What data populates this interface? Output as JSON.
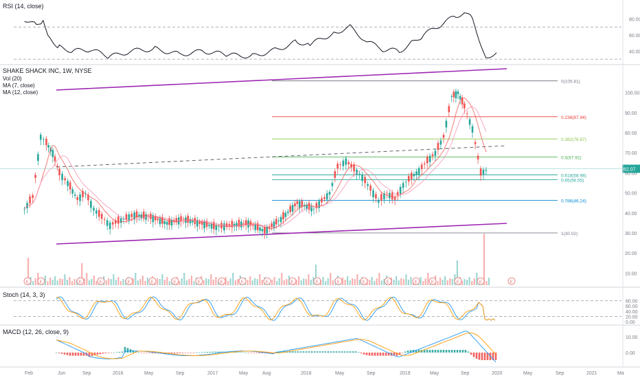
{
  "chart_data": {
    "type": "candlestick",
    "title": "SHAKE SHACK INC, 1W, NYSE",
    "panes": {
      "rsi": {
        "label": "RSI (14, close)",
        "levels": [
          70,
          30
        ],
        "ticks": [
          40,
          60,
          80
        ],
        "series": [
          [
            "2015-03-01",
            80
          ],
          [
            "2015-04-15",
            72
          ],
          [
            "2015-05-10",
            78
          ],
          [
            "2015-06-05",
            55
          ],
          [
            "2015-07-10",
            45
          ],
          [
            "2015-09-01",
            40
          ],
          [
            "2015-11-01",
            42
          ],
          [
            "2016-01-15",
            33
          ],
          [
            "2016-04-01",
            40
          ],
          [
            "2016-07-01",
            43
          ],
          [
            "2016-10-01",
            36
          ],
          [
            "2017-01-01",
            40
          ],
          [
            "2017-04-01",
            35
          ],
          [
            "2017-07-01",
            34
          ],
          [
            "2017-10-01",
            42
          ],
          [
            "2017-12-15",
            52
          ],
          [
            "2018-02-01",
            48
          ],
          [
            "2018-05-01",
            63
          ],
          [
            "2018-07-01",
            70
          ],
          [
            "2018-09-01",
            52
          ],
          [
            "2018-11-01",
            42
          ],
          [
            "2019-01-01",
            40
          ],
          [
            "2019-02-15",
            50
          ],
          [
            "2019-04-01",
            60
          ],
          [
            "2019-06-01",
            72
          ],
          [
            "2019-08-01",
            84
          ],
          [
            "2019-09-01",
            88
          ],
          [
            "2019-10-01",
            80
          ],
          [
            "2019-11-01",
            50
          ],
          [
            "2019-11-20",
            33
          ],
          [
            "2019-12-30",
            38
          ]
        ]
      },
      "price": {
        "ylim": [
          22,
          108
        ],
        "ticks": [
          10,
          20,
          30,
          40,
          50,
          60,
          70,
          80,
          90,
          100
        ],
        "legend": [
          "Vol (20)",
          "MA (7, close)",
          "MA (12, close)"
        ],
        "last_price": "62.07",
        "candles": [
          [
            "2015-03-01",
            45,
            47,
            40,
            42
          ],
          [
            "2015-04-01",
            42,
            50,
            41,
            48
          ],
          [
            "2015-05-01",
            48,
            80,
            47,
            78
          ],
          [
            "2015-05-22",
            70,
            96,
            65,
            75
          ],
          [
            "2015-06-15",
            75,
            88,
            68,
            70
          ],
          [
            "2015-07-10",
            70,
            74,
            58,
            60
          ],
          [
            "2015-08-10",
            60,
            63,
            52,
            55
          ],
          [
            "2015-09-15",
            55,
            57,
            44,
            47
          ],
          [
            "2015-10-15",
            47,
            52,
            42,
            50
          ],
          [
            "2015-11-15",
            50,
            51,
            40,
            42
          ],
          [
            "2015-12-15",
            42,
            44,
            36,
            38
          ],
          [
            "2016-01-15",
            38,
            41,
            32,
            34
          ],
          [
            "2016-02-15",
            34,
            37,
            30,
            36
          ],
          [
            "2016-04-15",
            36,
            40,
            34,
            39
          ],
          [
            "2016-06-15",
            39,
            42,
            36,
            38
          ],
          [
            "2016-08-15",
            38,
            41,
            33,
            35
          ],
          [
            "2016-10-15",
            35,
            39,
            33,
            37
          ],
          [
            "2016-12-15",
            37,
            39,
            34,
            35
          ],
          [
            "2017-02-15",
            35,
            38,
            32,
            33
          ],
          [
            "2017-04-15",
            33,
            36,
            31,
            34
          ],
          [
            "2017-06-15",
            34,
            37,
            32,
            35
          ],
          [
            "2017-08-15",
            35,
            36,
            30,
            31
          ],
          [
            "2017-10-15",
            31,
            38,
            31,
            37
          ],
          [
            "2017-12-15",
            37,
            47,
            36,
            45
          ],
          [
            "2018-02-15",
            45,
            48,
            40,
            42
          ],
          [
            "2018-04-15",
            42,
            52,
            41,
            50
          ],
          [
            "2018-05-15",
            50,
            65,
            49,
            63
          ],
          [
            "2018-06-15",
            63,
            70,
            60,
            66
          ],
          [
            "2018-07-15",
            66,
            68,
            58,
            62
          ],
          [
            "2018-08-15",
            62,
            64,
            55,
            58
          ],
          [
            "2018-09-15",
            58,
            60,
            50,
            52
          ],
          [
            "2018-10-15",
            52,
            54,
            43,
            46
          ],
          [
            "2018-11-15",
            46,
            52,
            44,
            50
          ],
          [
            "2018-12-15",
            50,
            54,
            45,
            47
          ],
          [
            "2019-01-15",
            47,
            55,
            46,
            54
          ],
          [
            "2019-02-15",
            54,
            60,
            52,
            58
          ],
          [
            "2019-03-15",
            58,
            63,
            56,
            61
          ],
          [
            "2019-04-15",
            61,
            67,
            60,
            66
          ],
          [
            "2019-05-15",
            66,
            72,
            64,
            70
          ],
          [
            "2019-06-15",
            70,
            80,
            69,
            78
          ],
          [
            "2019-07-15",
            78,
            100,
            76,
            98
          ],
          [
            "2019-08-08",
            98,
            105,
            95,
            100
          ],
          [
            "2019-09-01",
            100,
            106,
            90,
            93
          ],
          [
            "2019-10-01",
            93,
            95,
            80,
            82
          ],
          [
            "2019-11-01",
            82,
            84,
            58,
            60
          ],
          [
            "2019-12-01",
            60,
            63,
            58,
            62
          ]
        ],
        "fib_levels": [
          {
            "label": "0(105.81)",
            "value": 105.81,
            "color": "#787b86"
          },
          {
            "label": "0.236(87.94)",
            "value": 87.94,
            "color": "#e53935"
          },
          {
            "label": "0.382(76.87)",
            "value": 76.87,
            "color": "#8bc34a"
          },
          {
            "label": "0.5(67.92)",
            "value": 67.92,
            "color": "#4caf50"
          },
          {
            "label": "0.618(58.98)",
            "value": 58.98,
            "color": "#26a69a"
          },
          {
            "label": "0.65(56.55)",
            "value": 56.55,
            "color": "#26a69a"
          },
          {
            "label": "0.786(46.24)",
            "value": 46.24,
            "color": "#0288d1"
          },
          {
            "label": "1(30.02)",
            "value": 30.02,
            "color": "#787b86"
          }
        ],
        "vol_ticks": [
          10,
          20,
          30
        ],
        "volume_unit": "price-axis scale"
      },
      "stoch": {
        "label": "Stoch (14, 3, 3)",
        "levels": [
          80,
          20
        ],
        "ticks": [
          0,
          20,
          40,
          60,
          80
        ]
      },
      "macd": {
        "label": "MACD (12, 26, close, 9)",
        "ticks": [
          0,
          10
        ]
      }
    },
    "x_labels": [
      "Feb",
      "Jun",
      "Sep",
      "2016",
      "May",
      "Sep",
      "2017",
      "May",
      "Aug",
      "2018",
      "May",
      "Sep",
      "2019",
      "May",
      "Sep",
      "2020",
      "May",
      "Sep",
      "2021",
      "Ma"
    ],
    "colors": {
      "up": "#26a69a",
      "down": "#ef5350",
      "channel": "#9c27b0",
      "rsi_line": "#131722"
    }
  }
}
